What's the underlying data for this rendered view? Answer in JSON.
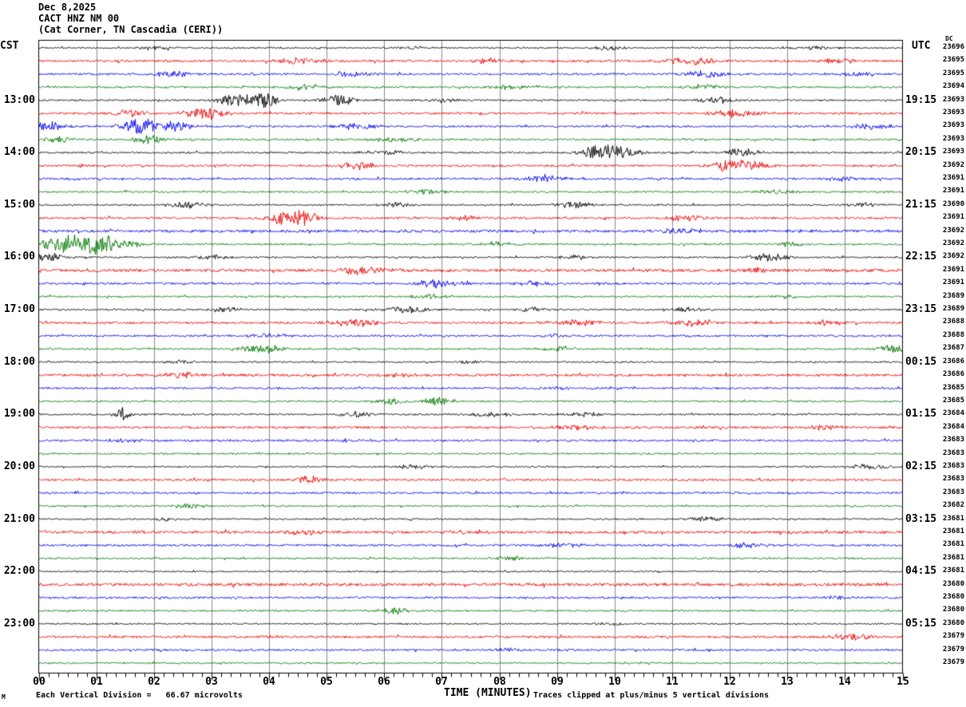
{
  "header": {
    "date_line": "Dec 8,2025",
    "station_line": "CACT HNZ NM 00",
    "location_line": "(Cat Corner, TN Cascadia (CERI))",
    "left_tz_label": "CST",
    "right_tz_label": "UTC",
    "dc_column_label": "DC"
  },
  "footer": {
    "scale_note": "Each Vertical Division =   66.67 microvolts",
    "axis_title": "TIME (MINUTES)",
    "clip_note": "Traces clipped at plus/minus 5 vertical divisions",
    "corner_mark": "M"
  },
  "chart_data": {
    "type": "line",
    "subtype": "helicorder-seismogram",
    "title": "Dec 8,2025 CACT HNZ NM 00 (Cat Corner, TN Cascadia (CERI))",
    "xlabel": "TIME (MINUTES)",
    "x_ticks": [
      "00",
      "01",
      "02",
      "03",
      "04",
      "05",
      "06",
      "07",
      "08",
      "09",
      "10",
      "11",
      "12",
      "13",
      "14",
      "15"
    ],
    "x_range_minutes": [
      0,
      15
    ],
    "minutes_per_row": 15,
    "minor_tick_seconds": 10,
    "grid": "vertical gray line at each minute",
    "grid_color": "#8a8a8a",
    "border_color": "#000000",
    "trace_color_cycle": [
      "#000000",
      "#ee0000",
      "#0000ee",
      "#007700"
    ],
    "clip_divisions": 5,
    "microvolts_per_division": "66.67",
    "row_fields": [
      "left_label_cst",
      "right_label_utc",
      "color_index",
      "dc_offset",
      "noise_amplitude_px",
      "bursts_[t_min,sigma_min,amp_px]"
    ],
    "rows": [
      [
        "",
        "",
        0,
        23696,
        0.9,
        [
          [
            2.0,
            0.3,
            2
          ],
          [
            6.5,
            0.2,
            2
          ],
          [
            9.9,
            0.2,
            3
          ],
          [
            13.5,
            0.3,
            2
          ]
        ]
      ],
      [
        "",
        "",
        1,
        23695,
        1.4,
        [
          [
            4.5,
            0.25,
            4
          ],
          [
            7.8,
            0.2,
            3
          ],
          [
            11.3,
            0.3,
            5
          ],
          [
            13.9,
            0.2,
            3
          ]
        ]
      ],
      [
        "",
        "",
        2,
        23695,
        1.2,
        [
          [
            2.3,
            0.25,
            4
          ],
          [
            5.4,
            0.3,
            3
          ],
          [
            11.6,
            0.3,
            4
          ],
          [
            14.2,
            0.2,
            3
          ]
        ]
      ],
      [
        "",
        "",
        3,
        23694,
        1.1,
        [
          [
            4.7,
            0.3,
            4
          ],
          [
            8.2,
            0.25,
            3
          ],
          [
            11.5,
            0.25,
            3
          ]
        ]
      ],
      [
        "13:00",
        "19:15",
        0,
        23693,
        1.0,
        [
          [
            3.5,
            0.25,
            9
          ],
          [
            3.9,
            0.15,
            11
          ],
          [
            5.2,
            0.2,
            7
          ],
          [
            7.0,
            0.2,
            3
          ],
          [
            11.8,
            0.25,
            4
          ]
        ]
      ],
      [
        "",
        "",
        1,
        23693,
        1.3,
        [
          [
            1.6,
            0.2,
            5
          ],
          [
            2.9,
            0.25,
            8
          ],
          [
            12.1,
            0.3,
            4
          ]
        ]
      ],
      [
        "",
        "",
        2,
        23693,
        1.2,
        [
          [
            0.15,
            0.2,
            6
          ],
          [
            1.8,
            0.25,
            10
          ],
          [
            2.4,
            0.2,
            6
          ],
          [
            5.5,
            0.3,
            4
          ],
          [
            14.5,
            0.25,
            4
          ]
        ]
      ],
      [
        "",
        "",
        3,
        23693,
        1.1,
        [
          [
            0.35,
            0.2,
            4
          ],
          [
            1.9,
            0.2,
            6
          ],
          [
            6.2,
            0.3,
            3
          ]
        ]
      ],
      [
        "14:00",
        "20:15",
        0,
        23693,
        1.1,
        [
          [
            6.0,
            0.3,
            3
          ],
          [
            9.7,
            0.2,
            10
          ],
          [
            10.1,
            0.25,
            7
          ],
          [
            12.2,
            0.25,
            5
          ]
        ]
      ],
      [
        "",
        "",
        1,
        23692,
        1.3,
        [
          [
            5.5,
            0.25,
            4
          ],
          [
            12.0,
            0.25,
            8
          ],
          [
            12.4,
            0.2,
            5
          ]
        ]
      ],
      [
        "",
        "",
        2,
        23691,
        1.2,
        [
          [
            8.8,
            0.25,
            5
          ],
          [
            14.0,
            0.2,
            3
          ]
        ]
      ],
      [
        "",
        "",
        3,
        23691,
        1.0,
        [
          [
            6.7,
            0.25,
            3
          ],
          [
            12.8,
            0.25,
            3
          ]
        ]
      ],
      [
        "15:00",
        "21:15",
        0,
        23690,
        1.0,
        [
          [
            2.6,
            0.25,
            4
          ],
          [
            6.2,
            0.2,
            3
          ],
          [
            9.3,
            0.25,
            4
          ],
          [
            14.3,
            0.2,
            3
          ]
        ]
      ],
      [
        "",
        "",
        1,
        23691,
        1.3,
        [
          [
            4.35,
            0.25,
            10
          ],
          [
            4.7,
            0.15,
            6
          ],
          [
            7.4,
            0.2,
            3
          ],
          [
            11.2,
            0.25,
            4
          ]
        ]
      ],
      [
        "",
        "",
        2,
        23692,
        1.6,
        [
          [
            11.2,
            0.3,
            4
          ]
        ]
      ],
      [
        "",
        "",
        3,
        23692,
        1.1,
        [
          [
            0.3,
            0.25,
            8
          ],
          [
            0.65,
            0.2,
            11
          ],
          [
            0.95,
            0.25,
            12
          ],
          [
            1.35,
            0.3,
            6
          ],
          [
            8.0,
            0.25,
            3
          ],
          [
            13.0,
            0.2,
            3
          ]
        ]
      ],
      [
        "16:00",
        "22:15",
        0,
        23692,
        1.0,
        [
          [
            0.2,
            0.2,
            5
          ],
          [
            3.0,
            0.25,
            3
          ],
          [
            9.3,
            0.2,
            3
          ],
          [
            12.7,
            0.25,
            5
          ]
        ]
      ],
      [
        "",
        "",
        1,
        23691,
        1.8,
        [
          [
            5.6,
            0.3,
            5
          ],
          [
            12.5,
            0.25,
            3
          ]
        ]
      ],
      [
        "",
        "",
        2,
        23691,
        1.3,
        [
          [
            6.9,
            0.3,
            5
          ],
          [
            8.6,
            0.25,
            3
          ]
        ]
      ],
      [
        "",
        "",
        3,
        23689,
        1.0,
        [
          [
            6.8,
            0.25,
            3
          ],
          [
            13.0,
            0.2,
            2
          ]
        ]
      ],
      [
        "17:00",
        "23:15",
        0,
        23689,
        1.0,
        [
          [
            3.3,
            0.2,
            3
          ],
          [
            6.4,
            0.3,
            4
          ],
          [
            8.6,
            0.2,
            3
          ],
          [
            11.2,
            0.25,
            3
          ]
        ]
      ],
      [
        "",
        "",
        1,
        23688,
        1.4,
        [
          [
            5.5,
            0.3,
            5
          ],
          [
            9.4,
            0.25,
            4
          ],
          [
            11.3,
            0.3,
            4
          ],
          [
            13.7,
            0.2,
            3
          ]
        ]
      ],
      [
        "",
        "",
        2,
        23688,
        1.2,
        [
          [
            4.0,
            0.25,
            3
          ],
          [
            9.0,
            0.2,
            2
          ]
        ]
      ],
      [
        "",
        "",
        3,
        23687,
        1.0,
        [
          [
            3.9,
            0.3,
            5
          ],
          [
            9.0,
            0.25,
            3
          ],
          [
            14.8,
            0.2,
            5
          ]
        ]
      ],
      [
        "18:00",
        "00:15",
        0,
        23686,
        0.9,
        [
          [
            2.4,
            0.2,
            2
          ],
          [
            7.5,
            0.2,
            2
          ]
        ]
      ],
      [
        "",
        "",
        1,
        23686,
        1.5,
        [
          [
            2.4,
            0.25,
            4
          ],
          [
            6.3,
            0.25,
            3
          ]
        ]
      ],
      [
        "",
        "",
        2,
        23685,
        1.1,
        [
          [
            9.0,
            0.2,
            2
          ]
        ]
      ],
      [
        "",
        "",
        3,
        23685,
        1.0,
        [
          [
            6.1,
            0.2,
            4
          ],
          [
            6.95,
            0.2,
            5
          ]
        ]
      ],
      [
        "19:00",
        "01:15",
        0,
        23684,
        1.0,
        [
          [
            1.45,
            0.1,
            8
          ],
          [
            5.5,
            0.25,
            3
          ],
          [
            7.8,
            0.3,
            3
          ],
          [
            9.5,
            0.2,
            3
          ]
        ]
      ],
      [
        "",
        "",
        1,
        23684,
        1.4,
        [
          [
            9.3,
            0.25,
            3
          ],
          [
            13.7,
            0.25,
            3
          ]
        ]
      ],
      [
        "",
        "",
        2,
        23683,
        1.2,
        [
          [
            1.5,
            0.25,
            3
          ],
          [
            5.4,
            0.2,
            2
          ]
        ]
      ],
      [
        "",
        "",
        3,
        23683,
        1.0,
        []
      ],
      [
        "20:00",
        "02:15",
        0,
        23683,
        0.9,
        [
          [
            6.5,
            0.25,
            3
          ],
          [
            14.4,
            0.25,
            4
          ]
        ]
      ],
      [
        "",
        "",
        1,
        23683,
        1.3,
        [
          [
            4.7,
            0.15,
            5
          ]
        ]
      ],
      [
        "",
        "",
        2,
        23683,
        1.2,
        []
      ],
      [
        "",
        "",
        3,
        23682,
        1.0,
        [
          [
            2.6,
            0.2,
            3
          ]
        ]
      ],
      [
        "21:00",
        "03:15",
        0,
        23681,
        0.9,
        [
          [
            2.2,
            0.2,
            2
          ],
          [
            11.6,
            0.25,
            3
          ]
        ]
      ],
      [
        "",
        "",
        1,
        23681,
        1.6,
        [
          [
            4.6,
            0.25,
            3
          ]
        ]
      ],
      [
        "",
        "",
        2,
        23681,
        1.3,
        [
          [
            9.1,
            0.25,
            3
          ],
          [
            12.3,
            0.25,
            3
          ]
        ]
      ],
      [
        "",
        "",
        3,
        23681,
        1.0,
        [
          [
            8.2,
            0.25,
            3
          ]
        ]
      ],
      [
        "22:00",
        "04:15",
        0,
        23681,
        0.9,
        []
      ],
      [
        "",
        "",
        1,
        23680,
        1.8,
        []
      ],
      [
        "",
        "",
        2,
        23680,
        1.2,
        [
          [
            13.8,
            0.2,
            2
          ]
        ]
      ],
      [
        "",
        "",
        3,
        23680,
        1.0,
        [
          [
            6.2,
            0.2,
            4
          ]
        ]
      ],
      [
        "23:00",
        "05:15",
        0,
        23680,
        0.9,
        [
          [
            9.9,
            0.2,
            2
          ]
        ]
      ],
      [
        "",
        "",
        1,
        23679,
        1.4,
        [
          [
            14.1,
            0.25,
            4
          ]
        ]
      ],
      [
        "",
        "",
        2,
        23679,
        1.2,
        [
          [
            8.1,
            0.2,
            2
          ]
        ]
      ],
      [
        "",
        "",
        3,
        23679,
        1.0,
        []
      ]
    ]
  }
}
